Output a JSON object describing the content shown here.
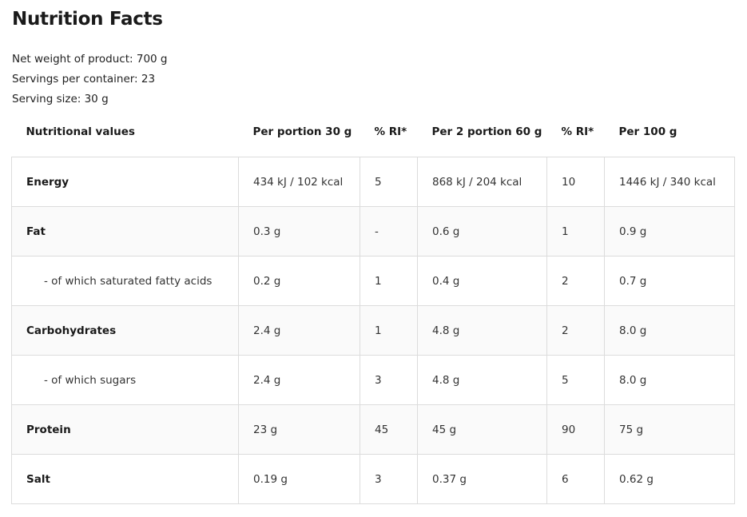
{
  "title": "Nutrition Facts",
  "meta": {
    "net_weight": "Net weight of product: 700 g",
    "servings": "Servings per container: 23",
    "serving_size": "Serving size: 30 g"
  },
  "table": {
    "headers": [
      "Nutritional values",
      "Per portion 30 g",
      "% RI*",
      "Per 2 portion 60 g",
      "% RI*",
      "Per 100 g"
    ],
    "rows": [
      {
        "name": "Energy",
        "sub": false,
        "cells": [
          "434 kJ / 102 kcal",
          "5",
          "868 kJ / 204 kcal",
          "10",
          "1446 kJ / 340 kcal"
        ]
      },
      {
        "name": "Fat",
        "sub": false,
        "cells": [
          "0.3 g",
          "-",
          "0.6 g",
          "1",
          "0.9 g"
        ]
      },
      {
        "name": "- of which saturated fatty acids",
        "sub": true,
        "cells": [
          "0.2 g",
          "1",
          "0.4 g",
          "2",
          "0.7 g"
        ]
      },
      {
        "name": "Carbohydrates",
        "sub": false,
        "cells": [
          "2.4 g",
          "1",
          "4.8 g",
          "2",
          "8.0 g"
        ]
      },
      {
        "name": "- of which sugars",
        "sub": true,
        "cells": [
          "2.4 g",
          "3",
          "4.8 g",
          "5",
          "8.0 g"
        ]
      },
      {
        "name": "Protein",
        "sub": false,
        "cells": [
          "23 g",
          "45",
          "45 g",
          "90",
          "75 g"
        ]
      },
      {
        "name": "Salt",
        "sub": false,
        "cells": [
          "0.19 g",
          "3",
          "0.37 g",
          "6",
          "0.62 g"
        ]
      }
    ]
  }
}
